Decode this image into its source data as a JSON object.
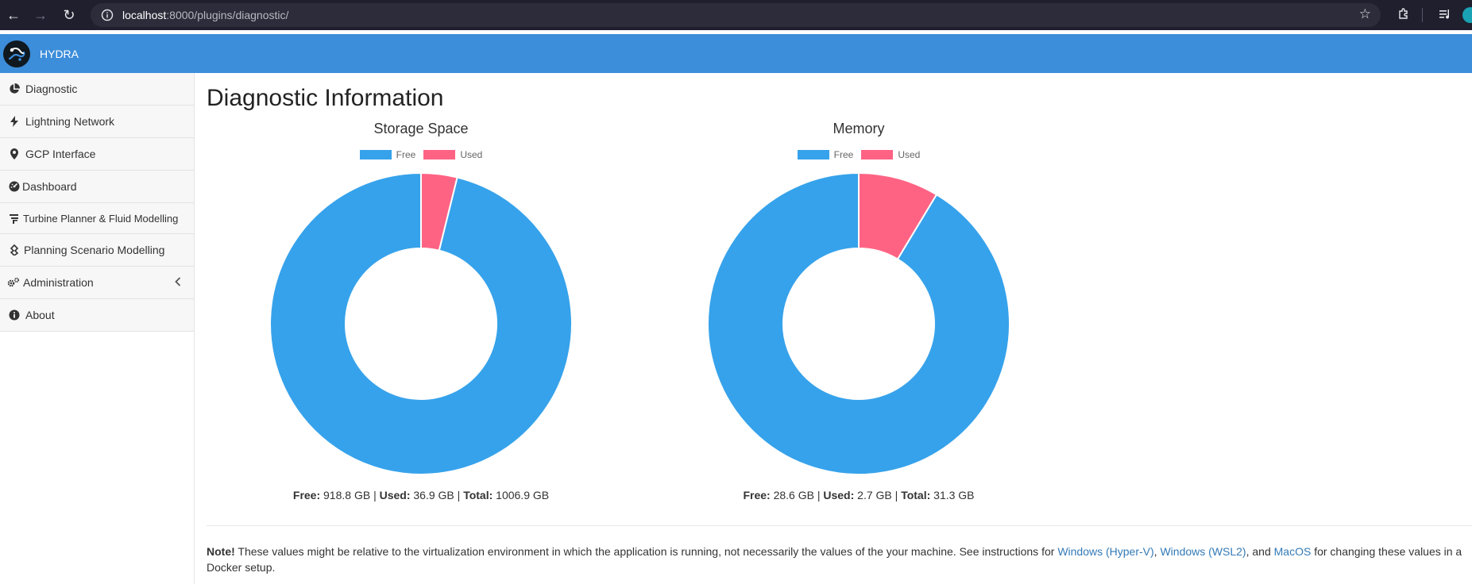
{
  "browser": {
    "url_host": "localhost",
    "url_rest": ":8000/plugins/diagnostic/"
  },
  "header": {
    "brand": "HYDRA",
    "color": "#3c8dda"
  },
  "sidebar": {
    "items": [
      {
        "label": "Diagnostic",
        "icon": "pie-chart-icon"
      },
      {
        "label": "Lightning Network",
        "icon": "bolt-icon"
      },
      {
        "label": "GCP Interface",
        "icon": "map-marker-icon"
      },
      {
        "label": "Dashboard",
        "icon": "dashboard-icon"
      },
      {
        "label": "Turbine Planner & Fluid Modelling",
        "icon": "filter-icon"
      },
      {
        "label": "Planning Scenario Modelling",
        "icon": "scenario-icon"
      },
      {
        "label": "Administration",
        "icon": "gears-icon"
      },
      {
        "label": "About",
        "icon": "info-circle-icon"
      }
    ]
  },
  "main": {
    "title": "Diagnostic Information",
    "stats_sep": "|",
    "labels": {
      "free": "Free:",
      "used": "Used:",
      "total": "Total:"
    },
    "storage": {
      "free": "918.8 GB",
      "used": "36.9 GB",
      "total": "1006.9 GB"
    },
    "memory": {
      "free": "28.6 GB",
      "used": "2.7 GB",
      "total": "31.3 GB"
    },
    "note": {
      "bold": "Note!",
      "text": " These values might be relative to the virtualization environment in which the application is running, not necessarily the values of the your machine. See instructions for ",
      "link1": "Windows (Hyper-V)",
      "sep1": ", ",
      "link2": "Windows (WSL2)",
      "sep2": ", and ",
      "link3": "MacOS",
      "tail": " for changing these values in a Docker setup."
    }
  },
  "chart_data": [
    {
      "type": "pie",
      "title": "Storage Space",
      "categories": [
        "Free",
        "Used"
      ],
      "values": [
        918.8,
        36.9
      ],
      "colors": [
        "#36a2eb",
        "#ff6384"
      ],
      "legend": "top"
    },
    {
      "type": "pie",
      "title": "Memory",
      "categories": [
        "Free",
        "Used"
      ],
      "values": [
        28.6,
        2.7
      ],
      "colors": [
        "#36a2eb",
        "#ff6384"
      ],
      "legend": "top"
    }
  ]
}
